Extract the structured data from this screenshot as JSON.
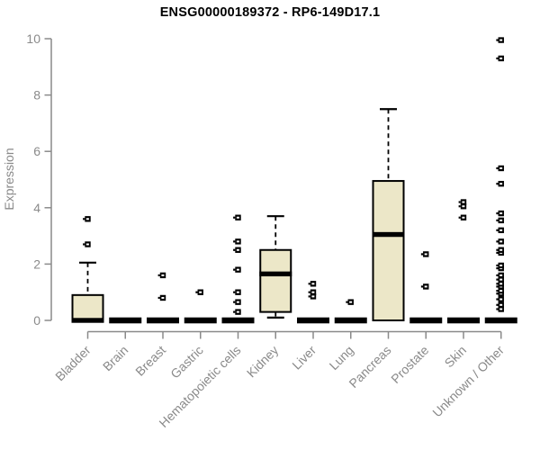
{
  "title": "ENSG00000189372 - RP6-149D17.1",
  "chart_data": {
    "type": "boxplot",
    "title": "ENSG00000189372 - RP6-149D17.1",
    "ylabel": "Expression",
    "xlabel": "",
    "ylim": [
      0,
      10
    ],
    "yticks": [
      0,
      2,
      4,
      6,
      8,
      10
    ],
    "grid": false,
    "legend": "none",
    "x_label_rotation_deg": 45,
    "categories": [
      "Bladder",
      "Brain",
      "Breast",
      "Gastric",
      "Hematopoietic cells",
      "Kidney",
      "Liver",
      "Lung",
      "Pancreas",
      "Prostate",
      "Skin",
      "Unknown / Other"
    ],
    "boxes": [
      {
        "category": "Bladder",
        "whisker_low": 0,
        "q1": 0,
        "median": 0,
        "q3": 0.9,
        "whisker_high": 2.05,
        "outliers": [
          2.7,
          3.6
        ]
      },
      {
        "category": "Brain",
        "whisker_low": 0,
        "q1": 0,
        "median": 0,
        "q3": 0,
        "whisker_high": 0,
        "outliers": []
      },
      {
        "category": "Breast",
        "whisker_low": 0,
        "q1": 0,
        "median": 0,
        "q3": 0,
        "whisker_high": 0,
        "outliers": [
          0.8,
          1.6
        ]
      },
      {
        "category": "Gastric",
        "whisker_low": 0,
        "q1": 0,
        "median": 0,
        "q3": 0,
        "whisker_high": 0,
        "outliers": [
          1.0
        ]
      },
      {
        "category": "Hematopoietic cells",
        "whisker_low": 0,
        "q1": 0,
        "median": 0,
        "q3": 0,
        "whisker_high": 0,
        "outliers": [
          0.3,
          0.65,
          1.0,
          1.8,
          2.5,
          2.8,
          3.65
        ]
      },
      {
        "category": "Kidney",
        "whisker_low": 0.1,
        "q1": 0.3,
        "median": 1.65,
        "q3": 2.5,
        "whisker_high": 3.7,
        "outliers": []
      },
      {
        "category": "Liver",
        "whisker_low": 0,
        "q1": 0,
        "median": 0,
        "q3": 0,
        "whisker_high": 0,
        "outliers": [
          0.85,
          1.0,
          1.3
        ]
      },
      {
        "category": "Lung",
        "whisker_low": 0,
        "q1": 0,
        "median": 0,
        "q3": 0,
        "whisker_high": 0,
        "outliers": [
          0.65
        ]
      },
      {
        "category": "Pancreas",
        "whisker_low": 0,
        "q1": 0,
        "median": 3.05,
        "q3": 4.95,
        "whisker_high": 7.5,
        "outliers": []
      },
      {
        "category": "Prostate",
        "whisker_low": 0,
        "q1": 0,
        "median": 0,
        "q3": 0,
        "whisker_high": 0,
        "outliers": [
          1.2,
          2.35
        ]
      },
      {
        "category": "Skin",
        "whisker_low": 0,
        "q1": 0,
        "median": 0,
        "q3": 0,
        "whisker_high": 0,
        "outliers": [
          3.65,
          4.05,
          4.2
        ]
      },
      {
        "category": "Unknown / Other",
        "whisker_low": 0,
        "q1": 0,
        "median": 0,
        "q3": 0,
        "whisker_high": 0,
        "outliers": [
          0.4,
          0.55,
          0.75,
          0.95,
          1.05,
          1.2,
          1.3,
          1.45,
          1.6,
          1.85,
          1.95,
          2.4,
          2.5,
          2.8,
          3.2,
          3.55,
          3.8,
          4.85,
          5.4,
          9.3,
          9.95
        ]
      }
    ]
  },
  "colors": {
    "background": "#ffffff",
    "title": "#000000",
    "axis": "#8a8a8a",
    "tick_text": "#8a8a8a",
    "box_fill": "#ece7c8",
    "box_border": "#000000",
    "median": "#000000",
    "whisker": "#000000",
    "outlier": "#000000"
  }
}
